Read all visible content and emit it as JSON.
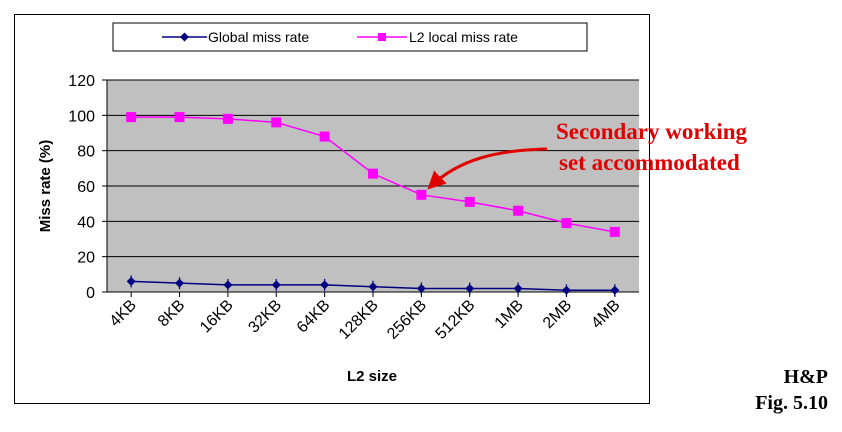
{
  "chart_data": {
    "type": "line",
    "categories": [
      "4KB",
      "8KB",
      "16KB",
      "32KB",
      "64KB",
      "128KB",
      "256KB",
      "512KB",
      "1MB",
      "2MB",
      "4MB"
    ],
    "series": [
      {
        "name": "Global miss rate",
        "values": [
          6,
          5,
          4,
          4,
          4,
          3,
          2,
          2,
          2,
          1,
          1
        ],
        "color": "#000080",
        "marker": "diamond"
      },
      {
        "name": "L2 local miss rate",
        "values": [
          99,
          99,
          98,
          96,
          88,
          67,
          55,
          51,
          46,
          39,
          34
        ],
        "color": "#ff00ff",
        "marker": "square"
      }
    ],
    "xlabel": "L2 size",
    "ylabel": "Miss rate (%)",
    "ylim": [
      0,
      120
    ],
    "yticks": [
      0,
      20,
      40,
      60,
      80,
      100,
      120
    ],
    "grid": true,
    "plot_background": "#c0c0c0",
    "legend_placement": "top",
    "annotation": {
      "lines": [
        "Secondary working",
        "set accommodated"
      ],
      "color": "#e00000",
      "points_to": {
        "category": "256KB",
        "value": 55
      }
    }
  },
  "credit": {
    "line1": "H&P",
    "line2": "Fig. 5.10"
  }
}
